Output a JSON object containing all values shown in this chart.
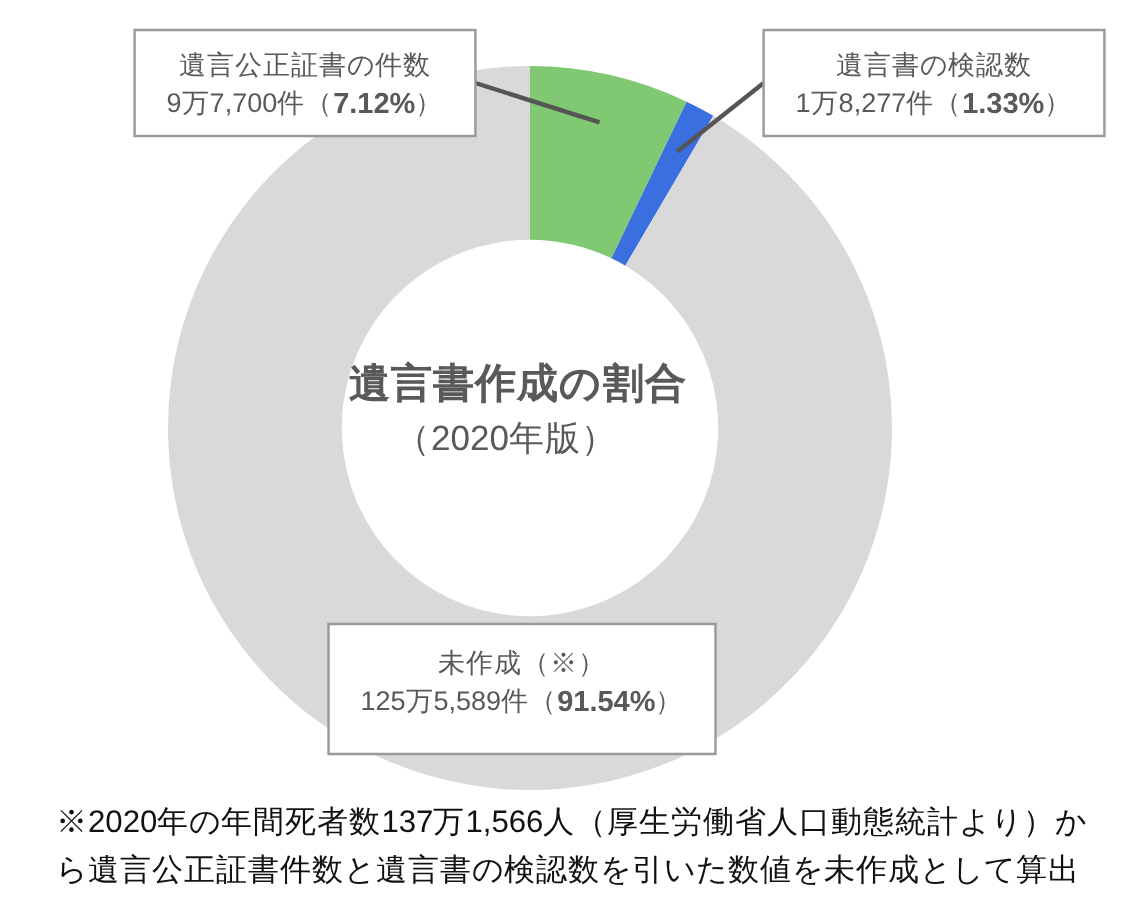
{
  "chart_data": {
    "type": "donut",
    "title": "遺言書作成の割合",
    "subtitle": "（2020年版）",
    "categories": [
      "遺言公正証書の件数",
      "遺言書の検認数",
      "未作成（※）"
    ],
    "values": [
      7.12,
      1.33,
      91.54
    ],
    "value_labels": [
      "9万7,700件（7.12%）",
      "1万8,277件（1.33%）",
      "125万5,589件（91.54%）"
    ],
    "colors": [
      "#80c972",
      "#3a6fe0",
      "#d9d9d9"
    ],
    "annotations": [
      "※2020年の年間死者数137万1,566人（厚生労働省人口動態統計より）から遺言公正証書件数と遺言書の検認数を引いた数値を未作成として算出"
    ],
    "legend": false
  }
}
